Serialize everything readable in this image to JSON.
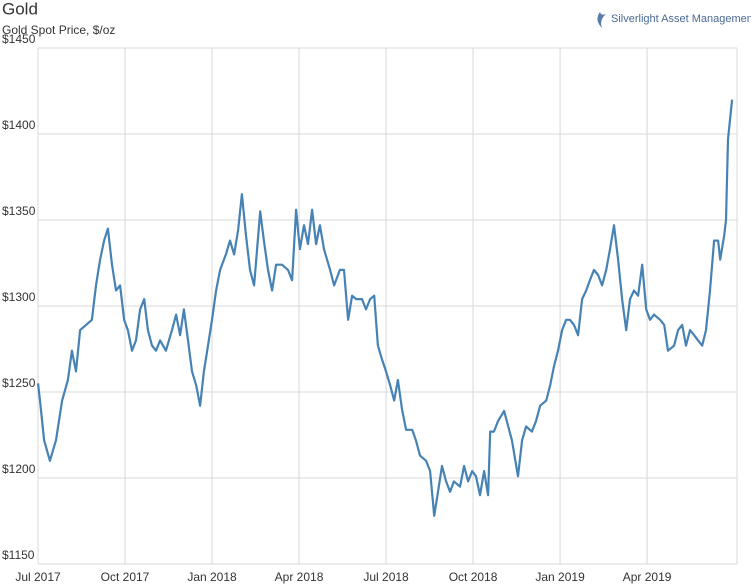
{
  "chart_data": {
    "type": "line",
    "title": "Gold",
    "subtitle": "Gold Spot Price, $/oz",
    "source": "Silverlight Asset Management, LLC",
    "grid": true,
    "xlim": [
      0,
      24.1
    ],
    "xticks": [
      {
        "value": 0,
        "label": "Jul 2017"
      },
      {
        "value": 3,
        "label": "Oct 2017"
      },
      {
        "value": 6,
        "label": "Jan 2018"
      },
      {
        "value": 9,
        "label": "Apr 2018"
      },
      {
        "value": 12,
        "label": "Jul 2018"
      },
      {
        "value": 15,
        "label": "Oct 2018"
      },
      {
        "value": 18,
        "label": "Jan 2019"
      },
      {
        "value": 21,
        "label": "Apr 2019"
      }
    ],
    "ylim": [
      1150,
      1450
    ],
    "yticks": [
      {
        "value": 1150,
        "label": "$1150"
      },
      {
        "value": 1200,
        "label": "$1200"
      },
      {
        "value": 1250,
        "label": "$1250"
      },
      {
        "value": 1300,
        "label": "$1300"
      },
      {
        "value": 1350,
        "label": "$1350"
      },
      {
        "value": 1400,
        "label": "$1400"
      },
      {
        "value": 1450,
        "label": "$1450"
      }
    ],
    "x": [
      0,
      0.07,
      0.21,
      0.41,
      0.62,
      0.83,
      1.03,
      1.17,
      1.31,
      1.45,
      1.66,
      1.86,
      2,
      2.14,
      2.28,
      2.41,
      2.55,
      2.69,
      2.83,
      2.97,
      3.1,
      3.24,
      3.38,
      3.52,
      3.66,
      3.79,
      3.93,
      4.07,
      4.21,
      4.41,
      4.62,
      4.76,
      4.9,
      5.03,
      5.17,
      5.31,
      5.45,
      5.59,
      5.72,
      5.86,
      6,
      6.14,
      6.28,
      6.48,
      6.62,
      6.76,
      6.9,
      7.03,
      7.17,
      7.31,
      7.45,
      7.66,
      7.79,
      7.93,
      8.07,
      8.21,
      8.41,
      8.62,
      8.76,
      8.9,
      9.03,
      9.17,
      9.31,
      9.45,
      9.59,
      9.72,
      9.86,
      10.07,
      10.21,
      10.41,
      10.55,
      10.69,
      10.83,
      10.97,
      11.17,
      11.31,
      11.45,
      11.59,
      11.72,
      11.86,
      12,
      12.14,
      12.28,
      12.41,
      12.55,
      12.69,
      12.9,
      13.03,
      13.17,
      13.38,
      13.52,
      13.66,
      13.79,
      13.93,
      14.07,
      14.21,
      14.34,
      14.55,
      14.69,
      14.83,
      14.97,
      15.1,
      15.24,
      15.38,
      15.52,
      15.59,
      15.72,
      15.86,
      16.07,
      16.21,
      16.34,
      16.55,
      16.69,
      16.83,
      17.03,
      17.17,
      17.31,
      17.52,
      17.66,
      17.79,
      17.93,
      18.07,
      18.21,
      18.34,
      18.48,
      18.62,
      18.76,
      18.9,
      19.03,
      19.17,
      19.31,
      19.45,
      19.59,
      19.72,
      19.86,
      20,
      20.14,
      20.28,
      20.41,
      20.55,
      20.69,
      20.83,
      20.97,
      21.1,
      21.24,
      21.45,
      21.59,
      21.72,
      21.93,
      22.07,
      22.21,
      22.34,
      22.48,
      22.62,
      22.76,
      22.9,
      23.03,
      23.17,
      23.31,
      23.45,
      23.52,
      23.66,
      23.72,
      23.79,
      23.93
    ],
    "series": [
      {
        "name": "Gold Spot Price",
        "color": "#4682b4",
        "values": [
          1255,
          1245,
          1222,
          1210,
          1222,
          1245,
          1257,
          1274,
          1262,
          1286,
          1289,
          1292,
          1312,
          1327,
          1338,
          1345,
          1324,
          1309,
          1312,
          1292,
          1286,
          1274,
          1280,
          1298,
          1304,
          1286,
          1277,
          1274,
          1280,
          1274,
          1286,
          1295,
          1283,
          1298,
          1280,
          1262,
          1254,
          1242,
          1262,
          1277,
          1292,
          1309,
          1321,
          1330,
          1338,
          1330,
          1344,
          1365,
          1341,
          1321,
          1312,
          1355,
          1338,
          1321,
          1309,
          1324,
          1324,
          1321,
          1315,
          1356,
          1333,
          1347,
          1336,
          1356,
          1336,
          1347,
          1333,
          1321,
          1312,
          1321,
          1321,
          1292,
          1306,
          1304,
          1304,
          1298,
          1304,
          1306,
          1277,
          1269,
          1262,
          1254,
          1245,
          1257,
          1240,
          1228,
          1228,
          1222,
          1213,
          1210,
          1204,
          1178,
          1192,
          1207,
          1198,
          1192,
          1198,
          1195,
          1207,
          1198,
          1204,
          1201,
          1190,
          1204,
          1190,
          1227,
          1227,
          1233,
          1239,
          1230,
          1222,
          1201,
          1222,
          1230,
          1227,
          1233,
          1242,
          1245,
          1254,
          1265,
          1274,
          1286,
          1292,
          1292,
          1289,
          1283,
          1304,
          1309,
          1315,
          1321,
          1318,
          1312,
          1321,
          1333,
          1347,
          1327,
          1304,
          1286,
          1304,
          1309,
          1306,
          1324,
          1298,
          1292,
          1295,
          1292,
          1289,
          1274,
          1277,
          1286,
          1289,
          1277,
          1286,
          1283,
          1280,
          1277,
          1286,
          1309,
          1338,
          1338,
          1327,
          1341,
          1350,
          1397,
          1420
        ]
      }
    ]
  }
}
